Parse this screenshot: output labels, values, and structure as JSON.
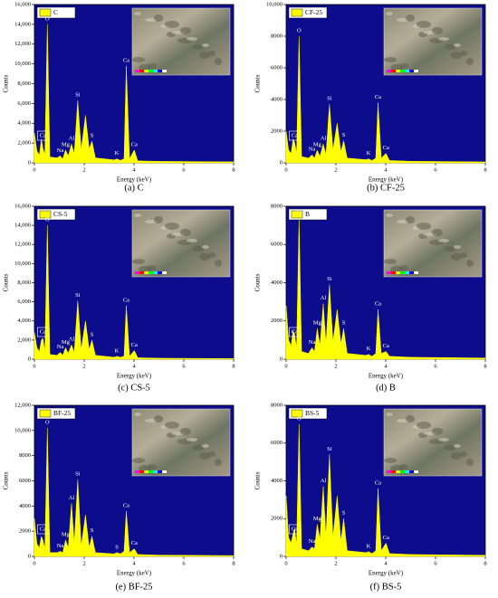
{
  "chart_data": [
    {
      "type": "area",
      "caption": "(a) C",
      "xlabel": "Energy (keV)",
      "ylabel": "Counts",
      "background": "#0c0c8c",
      "x": [
        0,
        0.1,
        0.2,
        0.28,
        0.34,
        0.42,
        0.52,
        0.62,
        0.9,
        1.04,
        1.14,
        1.25,
        1.36,
        1.49,
        1.6,
        1.74,
        1.88,
        2.05,
        2.2,
        2.31,
        2.45,
        3.2,
        3.31,
        3.45,
        3.6,
        3.69,
        3.82,
        4.01,
        4.15,
        5,
        8
      ],
      "point_labels": [
        null,
        null,
        null,
        null,
        "Ca",
        null,
        "O",
        null,
        null,
        "Na",
        null,
        "Mg",
        null,
        "Al",
        null,
        "Si",
        null,
        null,
        null,
        "S",
        null,
        null,
        "K",
        null,
        null,
        "Ca",
        null,
        "Ca",
        null,
        null,
        null
      ],
      "series": [
        {
          "name": "C",
          "color": "#ffff00",
          "values": [
            3000,
            1200,
            800,
            2400,
            1500,
            800,
            14000,
            600,
            500,
            700,
            400,
            1300,
            700,
            1900,
            900,
            6300,
            1300,
            4800,
            1400,
            2200,
            500,
            300,
            400,
            250,
            400,
            9800,
            400,
            1300,
            200,
            150,
            100
          ]
        }
      ],
      "xlim": [
        0,
        8
      ],
      "xticks": [
        0,
        2,
        4,
        6,
        8
      ],
      "ylim": [
        0,
        16000
      ],
      "yticks": [
        0,
        {
          "value": 2000,
          "label": "2,000"
        },
        {
          "value": 4000,
          "label": "4,000"
        },
        {
          "value": 6000,
          "label": "6,000"
        },
        {
          "value": 8000,
          "label": "8,000"
        },
        {
          "value": 10000,
          "label": "10,000"
        },
        {
          "value": 12000,
          "label": "12,000"
        },
        {
          "value": 14000,
          "label": "14,000"
        },
        {
          "value": 16000,
          "label": "16,000"
        }
      ]
    },
    {
      "type": "area",
      "caption": "(b) CF-25",
      "xlabel": "Energy (keV)",
      "ylabel": "Counts",
      "background": "#0c0c8c",
      "x": [
        0,
        0.1,
        0.2,
        0.28,
        0.34,
        0.42,
        0.52,
        0.62,
        0.9,
        1.04,
        1.14,
        1.25,
        1.36,
        1.49,
        1.6,
        1.74,
        1.88,
        2.05,
        2.2,
        2.31,
        2.45,
        3.2,
        3.31,
        3.45,
        3.6,
        3.69,
        3.82,
        4.01,
        4.15,
        5,
        8
      ],
      "point_labels": [
        null,
        null,
        null,
        null,
        "Ca",
        null,
        "O",
        null,
        null,
        "Na",
        null,
        "Mg",
        null,
        "Al",
        null,
        "Si",
        null,
        null,
        null,
        "S",
        null,
        null,
        "K",
        null,
        null,
        "Ca",
        null,
        "Ca",
        null,
        null,
        null
      ],
      "series": [
        {
          "name": "CF-25",
          "color": "#ffff00",
          "values": [
            2000,
            800,
            600,
            1500,
            1300,
            600,
            8000,
            400,
            300,
            500,
            300,
            800,
            400,
            1200,
            500,
            3700,
            800,
            2500,
            700,
            1400,
            300,
            200,
            250,
            150,
            300,
            3800,
            300,
            600,
            150,
            100,
            60
          ]
        }
      ],
      "xlim": [
        0,
        8
      ],
      "xticks": [
        0,
        2,
        4,
        6,
        8
      ],
      "ylim": [
        0,
        10000
      ],
      "yticks": [
        0,
        2000,
        4000,
        6000,
        8000,
        {
          "value": 10000,
          "label": "10,000"
        }
      ]
    },
    {
      "type": "area",
      "caption": "(c) CS-5",
      "xlabel": "Energy (keV)",
      "ylabel": "Counts",
      "background": "#0c0c8c",
      "x": [
        0,
        0.1,
        0.2,
        0.28,
        0.34,
        0.42,
        0.52,
        0.62,
        0.9,
        1.04,
        1.14,
        1.25,
        1.36,
        1.49,
        1.6,
        1.74,
        1.88,
        2.05,
        2.2,
        2.31,
        2.45,
        3.2,
        3.31,
        3.45,
        3.6,
        3.69,
        3.82,
        4.01,
        4.15,
        5,
        8
      ],
      "point_labels": [
        null,
        null,
        null,
        null,
        "Ca",
        null,
        "O",
        null,
        null,
        "Na",
        null,
        "Mg",
        null,
        "Al",
        null,
        "Si",
        null,
        null,
        null,
        "S",
        null,
        null,
        "K",
        null,
        null,
        "Ca",
        null,
        "Ca",
        null,
        null,
        null
      ],
      "series": [
        {
          "name": "CS-5",
          "color": "#ffff00",
          "values": [
            2800,
            1200,
            800,
            2000,
            2200,
            800,
            14000,
            500,
            400,
            700,
            400,
            1200,
            600,
            1500,
            700,
            6100,
            1000,
            4000,
            1000,
            2000,
            400,
            200,
            300,
            200,
            300,
            5600,
            300,
            900,
            150,
            100,
            60
          ]
        }
      ],
      "xlim": [
        0,
        8
      ],
      "xticks": [
        0,
        2,
        4,
        6,
        8
      ],
      "ylim": [
        0,
        16000
      ],
      "yticks": [
        0,
        {
          "value": 2000,
          "label": "2,000"
        },
        {
          "value": 4000,
          "label": "4,000"
        },
        {
          "value": 6000,
          "label": "6,000"
        },
        {
          "value": 8000,
          "label": "8,000"
        },
        {
          "value": 10000,
          "label": "10,000"
        },
        {
          "value": 12000,
          "label": "12,000"
        },
        {
          "value": 14000,
          "label": "14,000"
        },
        {
          "value": 16000,
          "label": "16,000"
        }
      ]
    },
    {
      "type": "area",
      "caption": "(d) B",
      "xlabel": "Energy (keV)",
      "ylabel": "Counts",
      "background": "#0c0c8c",
      "x": [
        0,
        0.1,
        0.2,
        0.28,
        0.34,
        0.42,
        0.52,
        0.62,
        0.9,
        1.04,
        1.14,
        1.25,
        1.36,
        1.49,
        1.6,
        1.74,
        1.88,
        2.05,
        2.2,
        2.31,
        2.45,
        3.2,
        3.31,
        3.45,
        3.6,
        3.69,
        3.82,
        4.01,
        4.15,
        5,
        8
      ],
      "point_labels": [
        null,
        null,
        null,
        null,
        "Ca",
        null,
        "O",
        null,
        null,
        "Na",
        null,
        "Mg",
        null,
        "Al",
        null,
        "Si",
        null,
        null,
        null,
        "S",
        null,
        null,
        "K",
        null,
        null,
        "Ca",
        null,
        "Ca",
        null,
        null,
        null
      ],
      "series": [
        {
          "name": "B",
          "color": "#ffff00",
          "values": [
            2800,
            1000,
            700,
            1500,
            1300,
            600,
            7400,
            400,
            300,
            600,
            400,
            1600,
            700,
            2900,
            800,
            3900,
            900,
            2600,
            800,
            1600,
            300,
            200,
            250,
            150,
            300,
            2600,
            300,
            400,
            150,
            100,
            60
          ]
        }
      ],
      "xlim": [
        0,
        8
      ],
      "xticks": [
        0,
        2,
        4,
        6,
        8
      ],
      "ylim": [
        0,
        8000
      ],
      "yticks": [
        0,
        2000,
        4000,
        6000,
        8000
      ]
    },
    {
      "type": "area",
      "caption": "(e) BF-25",
      "xlabel": "Energy (keV)",
      "ylabel": "Counts",
      "background": "#0c0c8c",
      "x": [
        0,
        0.1,
        0.2,
        0.28,
        0.34,
        0.42,
        0.52,
        0.62,
        0.9,
        1.04,
        1.14,
        1.25,
        1.36,
        1.49,
        1.6,
        1.74,
        1.88,
        2.05,
        2.2,
        2.31,
        2.45,
        3.2,
        3.31,
        3.45,
        3.6,
        3.69,
        3.82,
        4.01,
        4.15,
        5,
        8
      ],
      "point_labels": [
        null,
        null,
        null,
        null,
        "Ca",
        null,
        "O",
        null,
        null,
        "Na",
        null,
        "Mg",
        null,
        "Al",
        null,
        "Si",
        null,
        null,
        null,
        "S",
        null,
        null,
        "S",
        null,
        null,
        "Ca",
        null,
        "Ca",
        null,
        null,
        null
      ],
      "series": [
        {
          "name": "BF-25",
          "color": "#ffff00",
          "values": [
            3000,
            1000,
            700,
            1600,
            1300,
            600,
            10200,
            300,
            300,
            400,
            300,
            1300,
            700,
            4200,
            1000,
            6100,
            800,
            3300,
            700,
            1600,
            300,
            200,
            300,
            200,
            400,
            3600,
            300,
            600,
            150,
            100,
            60
          ]
        }
      ],
      "xlim": [
        0,
        8
      ],
      "xticks": [
        0,
        2,
        4,
        6,
        8
      ],
      "ylim": [
        0,
        12000
      ],
      "yticks": [
        0,
        2000,
        4000,
        6000,
        8000,
        {
          "value": 10000,
          "label": "10,000"
        },
        {
          "value": 12000,
          "label": "12,000"
        }
      ]
    },
    {
      "type": "area",
      "caption": "(f) BS-5",
      "xlabel": "Energy (keV)",
      "ylabel": "Counts",
      "background": "#0c0c8c",
      "x": [
        0,
        0.1,
        0.2,
        0.28,
        0.34,
        0.42,
        0.52,
        0.62,
        0.9,
        1.04,
        1.14,
        1.25,
        1.36,
        1.49,
        1.6,
        1.74,
        1.88,
        2.05,
        2.2,
        2.31,
        2.45,
        3.2,
        3.31,
        3.45,
        3.6,
        3.69,
        3.82,
        4.01,
        4.15,
        5,
        8
      ],
      "point_labels": [
        null,
        null,
        null,
        null,
        "Ca",
        null,
        "O",
        null,
        null,
        "Na",
        null,
        "Mg",
        null,
        "Al",
        null,
        "Si",
        null,
        null,
        null,
        "S",
        null,
        null,
        "K",
        null,
        null,
        "Ca",
        null,
        "Ca",
        null,
        null,
        null
      ],
      "series": [
        {
          "name": "BS-5",
          "color": "#ffff00",
          "values": [
            3200,
            1000,
            700,
            1200,
            1500,
            600,
            7000,
            400,
            300,
            500,
            400,
            1700,
            900,
            3700,
            1000,
            5400,
            1000,
            3200,
            800,
            2000,
            300,
            200,
            250,
            150,
            300,
            3600,
            300,
            700,
            150,
            100,
            60
          ]
        }
      ],
      "xlim": [
        0,
        8
      ],
      "xticks": [
        0,
        2,
        4,
        6,
        8
      ],
      "ylim": [
        0,
        8000
      ],
      "yticks": [
        0,
        2000,
        4000,
        6000,
        8000
      ]
    }
  ]
}
